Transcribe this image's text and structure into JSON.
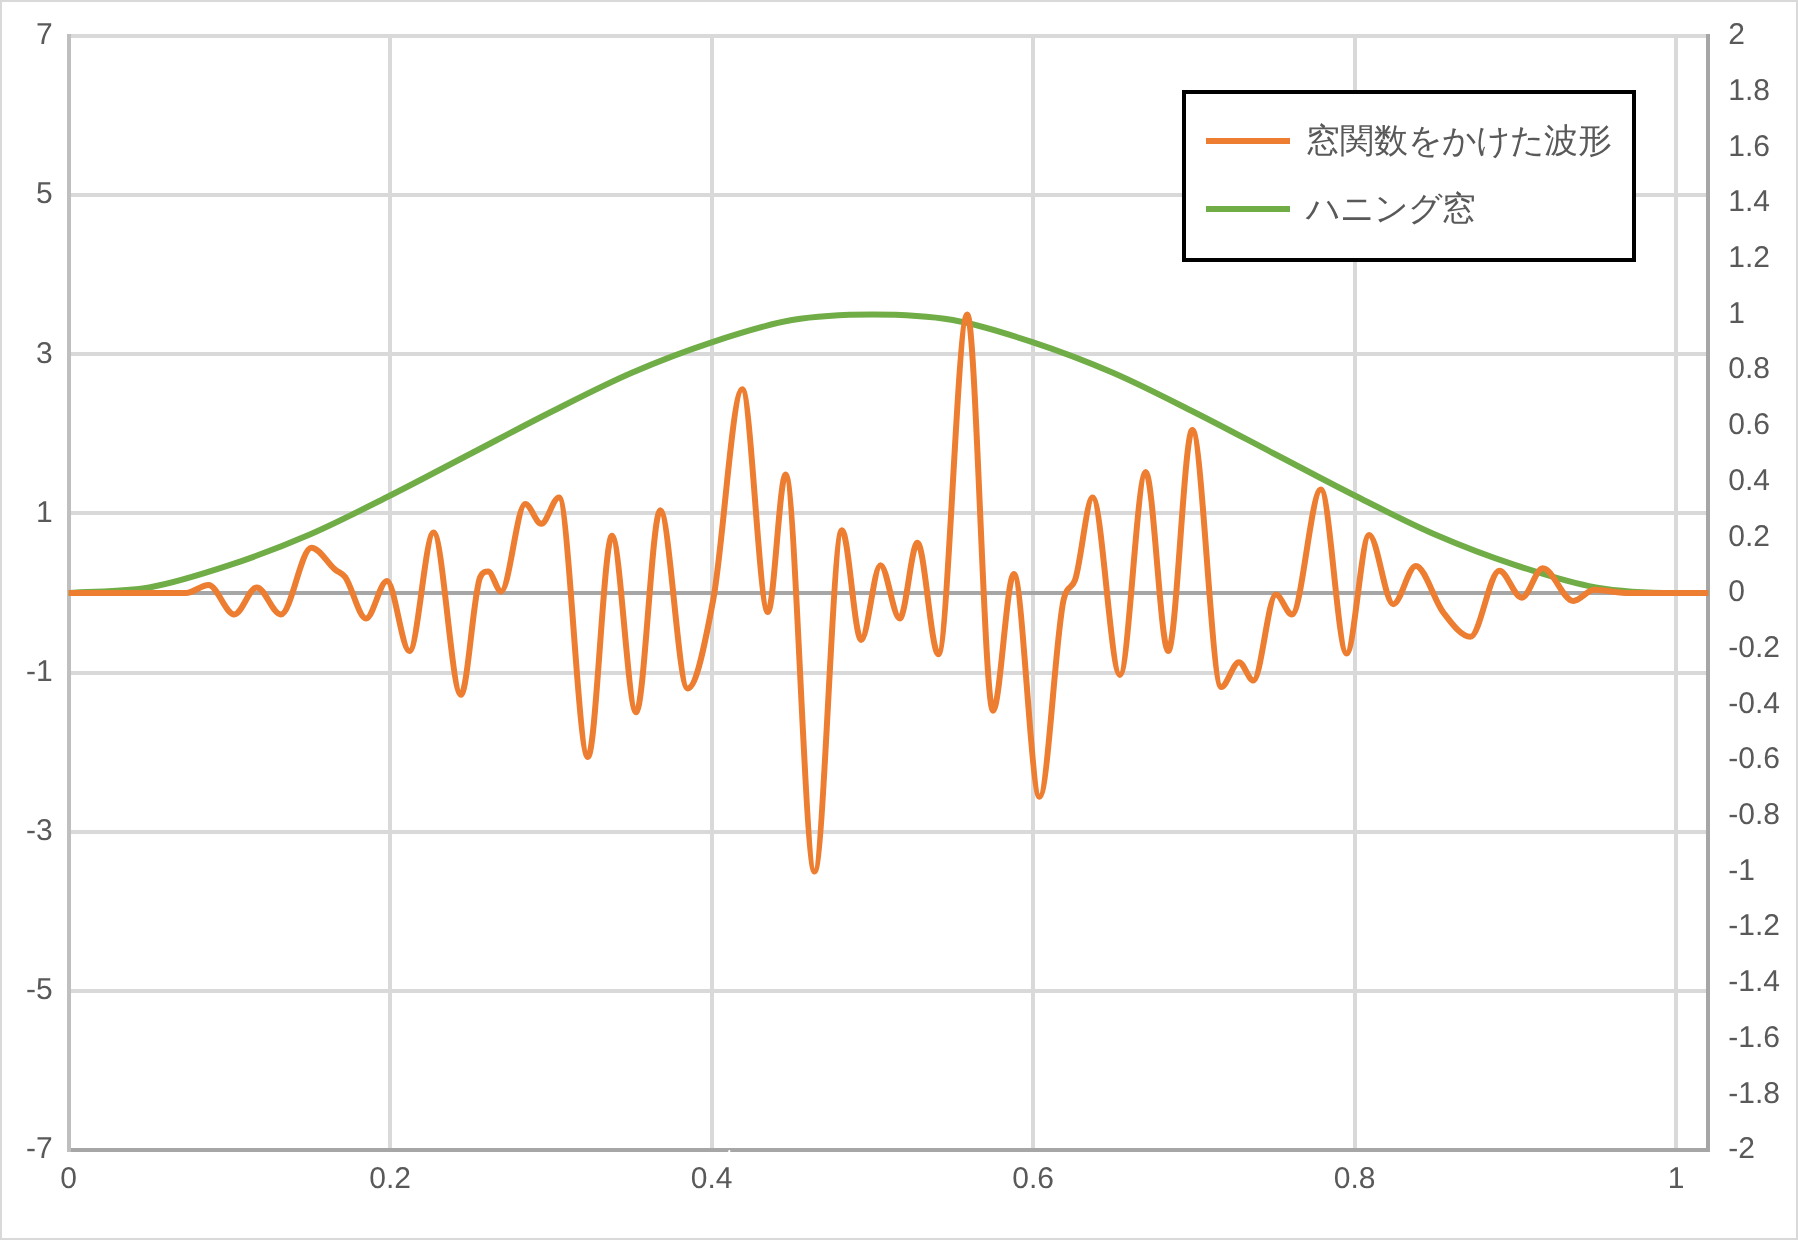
{
  "chart_data": {
    "type": "line",
    "xlim": [
      0,
      1.02
    ],
    "xticks": [
      0,
      0.2,
      0.4,
      0.6,
      0.8,
      1
    ],
    "ylim": [
      -7,
      7
    ],
    "yticks": [
      -7,
      -5,
      -3,
      -1,
      {
        "value": 0,
        "label": null
      },
      1,
      3,
      5,
      7
    ],
    "y2lim": [
      -2,
      2
    ],
    "y2ticks": [
      -2,
      -1.8,
      -1.6,
      -1.4,
      -1.2,
      -1,
      -0.8,
      -0.6,
      -0.4,
      -0.2,
      0,
      0.2,
      0.4,
      0.6,
      0.8,
      1,
      1.2,
      1.4,
      1.6,
      1.8,
      2
    ],
    "grid": true,
    "legend": "top right",
    "marker": "none",
    "line_style": "solid",
    "series": [
      {
        "name": "窓関数をかけた波形",
        "color": "#ed7d31",
        "x": [
          0,
          0.05,
          0.073,
          0.087,
          0.103,
          0.117,
          0.132,
          0.151,
          0.166,
          0.172,
          0.185,
          0.198,
          0.212,
          0.227,
          0.244,
          0.256,
          0.261,
          0.269,
          0.284,
          0.294,
          0.305,
          0.323,
          0.338,
          0.353,
          0.368,
          0.385,
          0.401,
          0.419,
          0.435,
          0.446,
          0.464,
          0.481,
          0.493,
          0.505,
          0.517,
          0.528,
          0.541,
          0.559,
          0.575,
          0.588,
          0.604,
          0.619,
          0.626,
          0.637,
          0.654,
          0.67,
          0.684,
          0.699,
          0.717,
          0.728,
          0.737,
          0.751,
          0.761,
          0.779,
          0.795,
          0.809,
          0.824,
          0.838,
          0.855,
          0.872,
          0.89,
          0.904,
          0.917,
          0.936,
          0.949,
          0.971,
          1,
          1.02
        ],
        "values": [
          0,
          0,
          0,
          0.1,
          -0.27,
          0.07,
          -0.27,
          0.57,
          0.29,
          0.2,
          -0.32,
          0.15,
          -0.73,
          0.76,
          -1.28,
          0.2,
          0.27,
          0.02,
          1.12,
          0.87,
          1.2,
          -2.06,
          0.72,
          -1.5,
          1.04,
          -1.2,
          -0.08,
          2.56,
          -0.24,
          1.49,
          -3.5,
          0.79,
          -0.59,
          0.35,
          -0.32,
          0.63,
          -0.77,
          3.5,
          -1.48,
          0.24,
          -2.56,
          -0.08,
          0.16,
          1.2,
          -1.03,
          1.52,
          -0.73,
          2.05,
          -1.18,
          -0.87,
          -1.1,
          -0.02,
          -0.27,
          1.3,
          -0.76,
          0.73,
          -0.14,
          0.34,
          -0.24,
          -0.55,
          0.28,
          -0.06,
          0.31,
          -0.1,
          0.04,
          0,
          0,
          0
        ]
      },
      {
        "name": "ハニング窓",
        "color": "#70ad47",
        "axis": "y2",
        "x": [
          0,
          0.05,
          0.1,
          0.15,
          0.2,
          0.25,
          0.3,
          0.35,
          0.4,
          0.45,
          0.5,
          0.55,
          0.6,
          0.65,
          0.7,
          0.75,
          0.8,
          0.85,
          0.9,
          0.95,
          1,
          1.02
        ],
        "values": [
          0,
          0.02,
          0.1,
          0.21,
          0.35,
          0.5,
          0.65,
          0.79,
          0.9,
          0.98,
          1,
          0.98,
          0.9,
          0.79,
          0.65,
          0.5,
          0.35,
          0.21,
          0.1,
          0.02,
          0,
          0
        ]
      }
    ]
  }
}
